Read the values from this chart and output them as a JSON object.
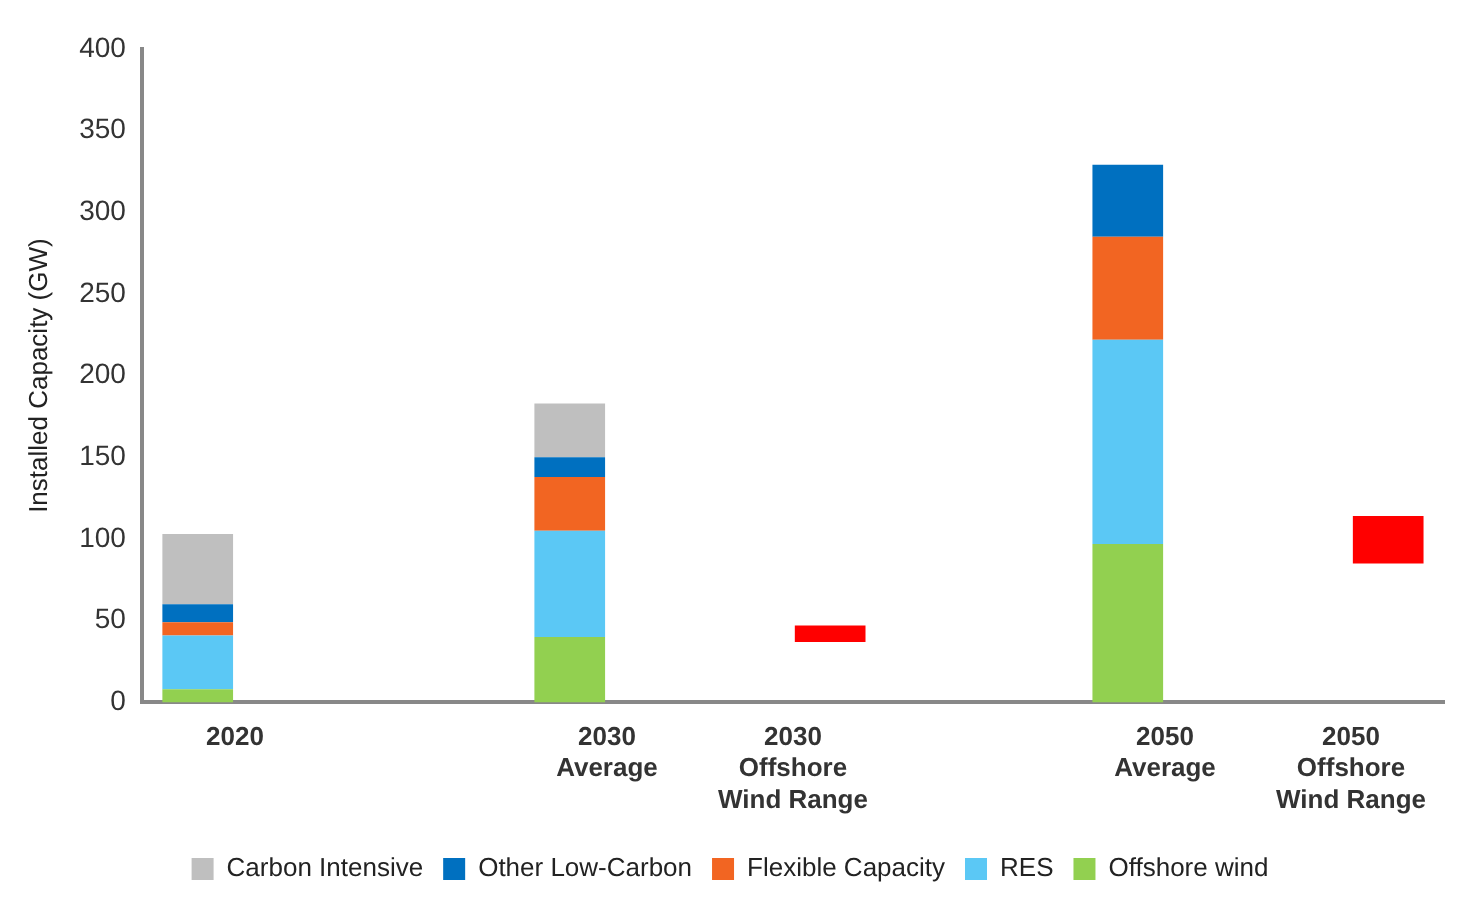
{
  "chart_data": {
    "type": "bar",
    "stacked": true,
    "ylabel": "Installed Capacity (GW)",
    "categories": [
      "2020",
      null,
      "2030\nAverage",
      "2030\nOffshore\nWind Range",
      null,
      "2050\nAverage",
      "2050\nOffshore\nWind Range"
    ],
    "series": [
      {
        "name": "Offshore wind",
        "color": "#92d050",
        "values": [
          8,
          null,
          40,
          null,
          null,
          97,
          null
        ]
      },
      {
        "name": "RES",
        "color": "#5bc8f5",
        "values": [
          33,
          null,
          65,
          null,
          null,
          125,
          null
        ]
      },
      {
        "name": "Flexible Capacity",
        "color": "#f26522",
        "values": [
          8,
          null,
          33,
          null,
          null,
          63,
          null
        ]
      },
      {
        "name": "Other Low-Carbon",
        "color": "#0070c0",
        "values": [
          11,
          null,
          12,
          null,
          null,
          44,
          null
        ]
      },
      {
        "name": "Carbon Intensive",
        "color": "#bfbfbf",
        "values": [
          43,
          null,
          33,
          null,
          null,
          null,
          null
        ]
      },
      {
        "color": "#ff0000",
        "values": [
          null,
          null,
          null,
          10,
          null,
          null,
          29
        ],
        "base": [
          null,
          null,
          null,
          37,
          null,
          null,
          85
        ]
      }
    ],
    "ylim": [
      0,
      400
    ],
    "yticks": [
      0,
      50,
      100,
      150,
      200,
      250,
      300,
      350,
      400
    ],
    "grid": false,
    "legend": "bottom"
  }
}
